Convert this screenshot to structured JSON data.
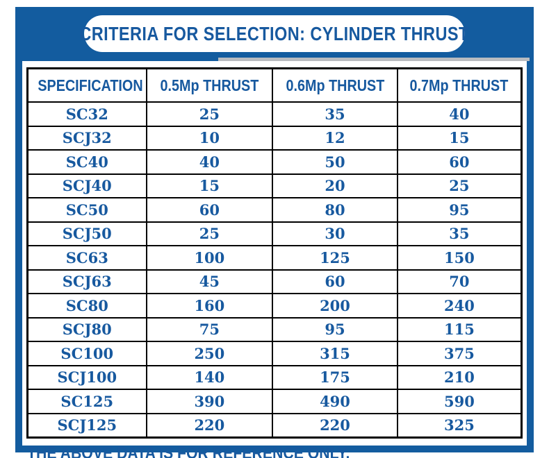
{
  "title": "CRITERIA FOR SELECTION: CYLINDER THRUST",
  "footer": "THE ABOVE DATA IS FOR REFERENCE ONLY.",
  "colors": {
    "frame_blue": "#135C9F",
    "text_blue": "#17599F",
    "table_border": "#000000",
    "banner_background": "#ffffff"
  },
  "table": {
    "headers": [
      "SPECIFICATION",
      "0.5Mp THRUST",
      "0.6Mp THRUST",
      "0.7Mp THRUST"
    ],
    "rows": [
      [
        "SC32",
        "25",
        "35",
        "40"
      ],
      [
        "SCJ32",
        "10",
        "12",
        "15"
      ],
      [
        "SC40",
        "40",
        "50",
        "60"
      ],
      [
        "SCJ40",
        "15",
        "20",
        "25"
      ],
      [
        "SC50",
        "60",
        "80",
        "95"
      ],
      [
        "SCJ50",
        "25",
        "30",
        "35"
      ],
      [
        "SC63",
        "100",
        "125",
        "150"
      ],
      [
        "SCJ63",
        "45",
        "60",
        "70"
      ],
      [
        "SC80",
        "160",
        "200",
        "240"
      ],
      [
        "SCJ80",
        "75",
        "95",
        "115"
      ],
      [
        "SC100",
        "250",
        "315",
        "375"
      ],
      [
        "SCJ100",
        "140",
        "175",
        "210"
      ],
      [
        "SC125",
        "390",
        "490",
        "590"
      ],
      [
        "SCJ125",
        "220",
        "220",
        "325"
      ]
    ]
  }
}
